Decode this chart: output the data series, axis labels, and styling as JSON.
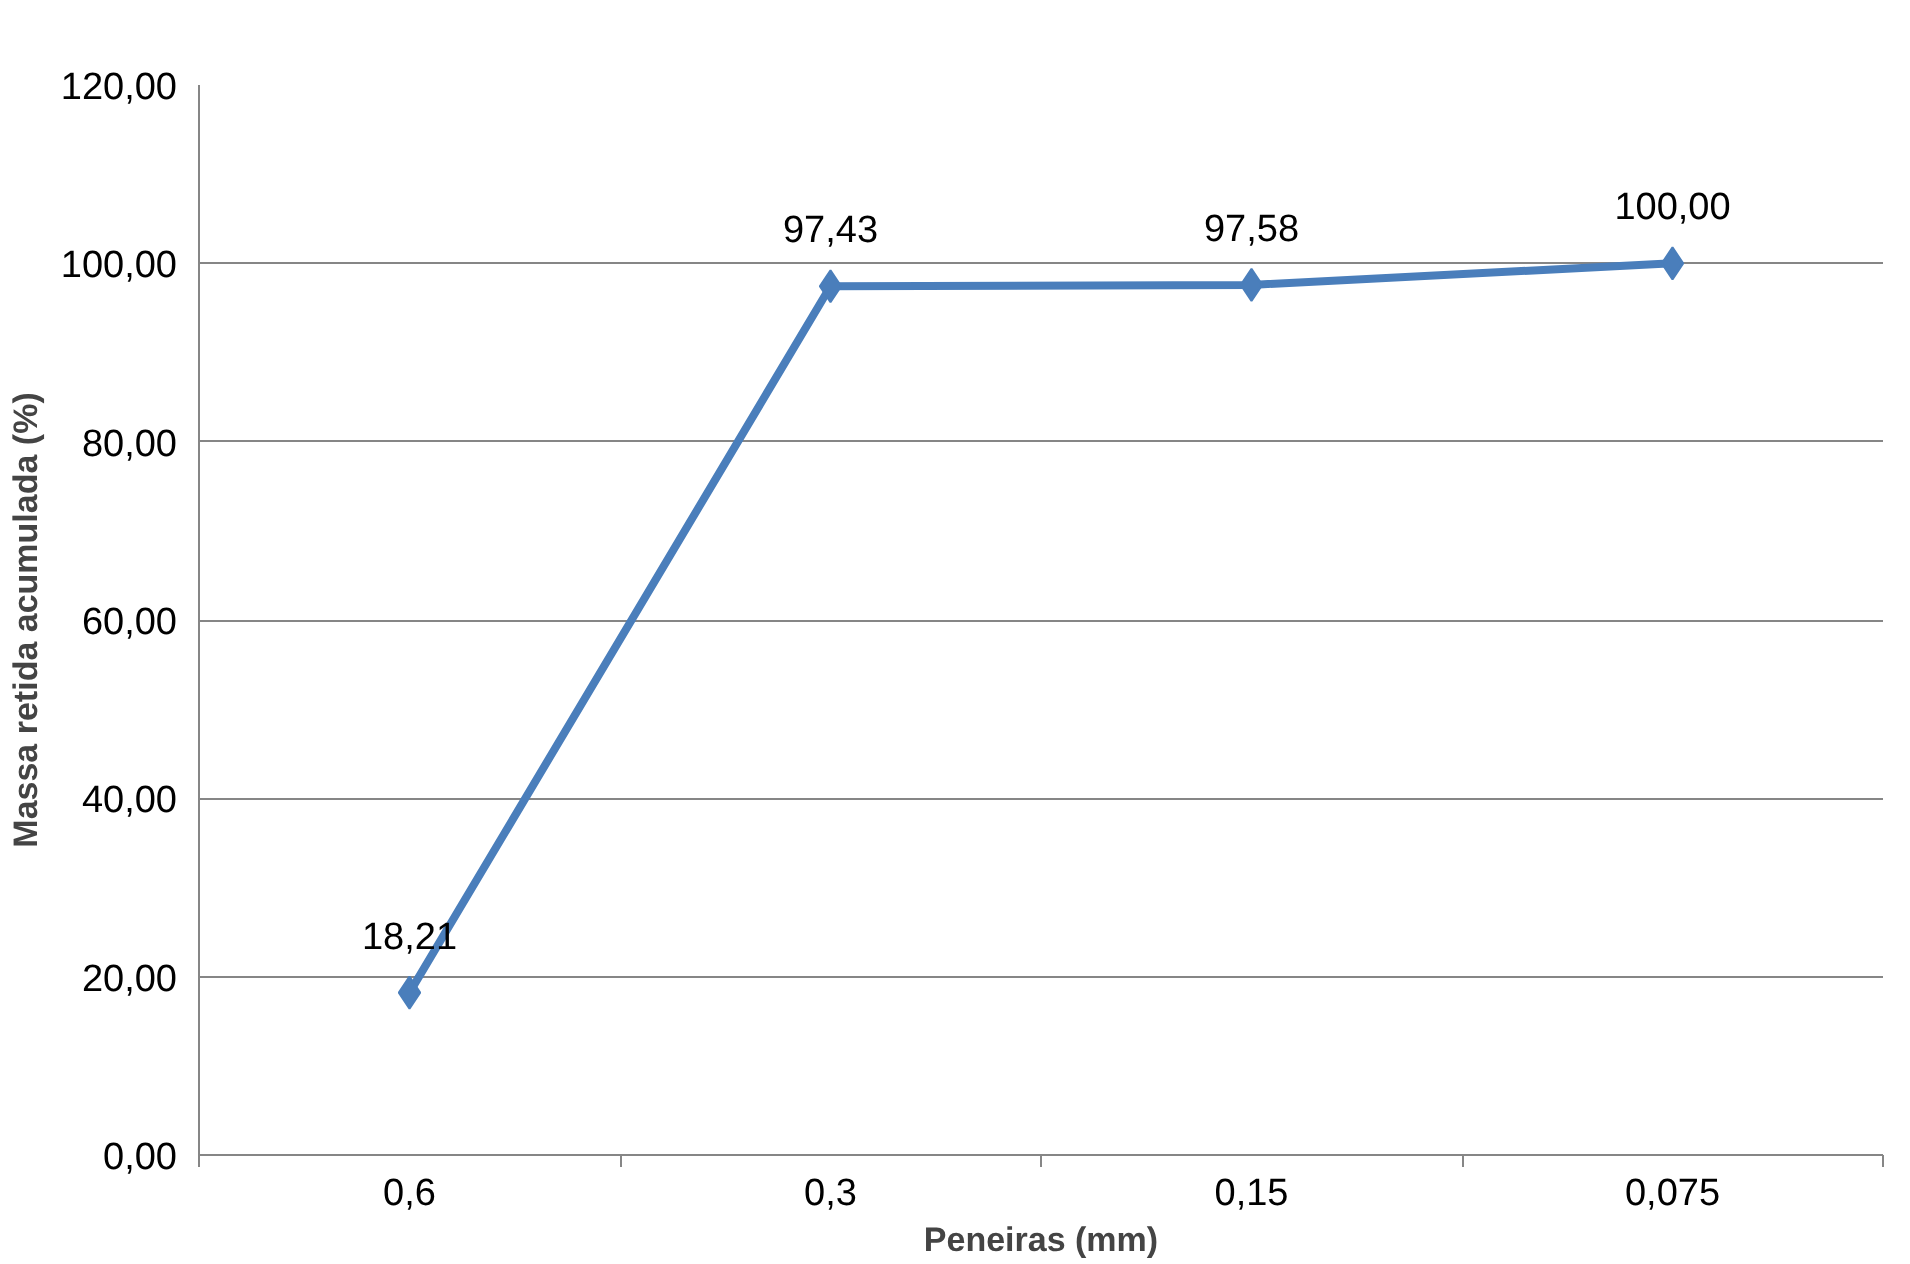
{
  "chart_data": {
    "type": "line",
    "xlabel": "Peneiras (mm)",
    "ylabel": "Massa retida acumulada (%)",
    "categories": [
      "0,6",
      "0,3",
      "0,15",
      "0,075"
    ],
    "series": [
      {
        "color": "#4a7ebb",
        "values": [
          18.21,
          97.43,
          97.58,
          100.0
        ],
        "value_labels": [
          "18,21",
          "97,43",
          "97,58",
          "100,00"
        ]
      }
    ],
    "ylim": [
      0,
      120
    ],
    "yticks": [
      {
        "value": 0,
        "label": "0,00"
      },
      {
        "value": 20,
        "label": "20,00"
      },
      {
        "value": 40,
        "label": "40,00"
      },
      {
        "value": 60,
        "label": "60,00"
      },
      {
        "value": 80,
        "label": "80,00"
      },
      {
        "value": 100,
        "label": "100,00"
      },
      {
        "value": 120,
        "label": "120,00"
      }
    ],
    "grid": "y",
    "marker": "diamond",
    "line_style": "solid"
  }
}
